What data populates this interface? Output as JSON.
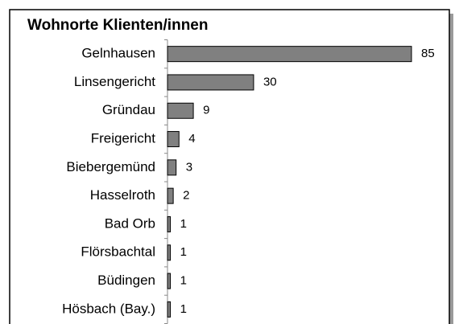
{
  "chart_data": {
    "type": "bar",
    "orientation": "horizontal",
    "title": "Wohnorte Klienten/innen",
    "categories": [
      "Gelnhausen",
      "Linsengericht",
      "Gründau",
      "Freigericht",
      "Biebergemünd",
      "Hasselroth",
      "Bad Orb",
      "Flörsbachtal",
      "Büdingen",
      "Hösbach (Bay.)"
    ],
    "values": [
      85,
      30,
      9,
      4,
      3,
      2,
      1,
      1,
      1,
      1
    ],
    "color": "#808080"
  }
}
